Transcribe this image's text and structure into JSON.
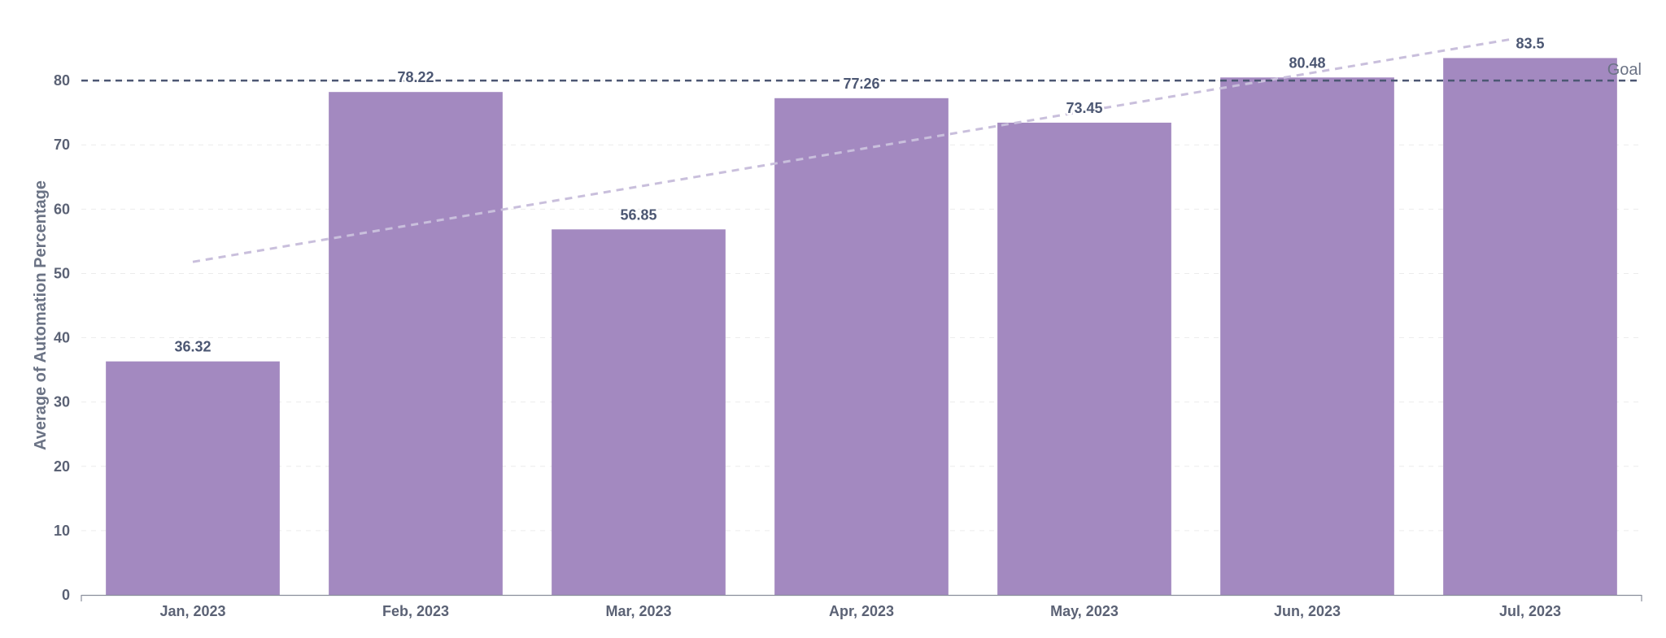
{
  "chart_data": {
    "type": "bar",
    "categories": [
      "Jan, 2023",
      "Feb, 2023",
      "Mar, 2023",
      "Apr, 2023",
      "May, 2023",
      "Jun, 2023",
      "Jul, 2023"
    ],
    "values": [
      36.32,
      78.22,
      56.85,
      77.26,
      73.45,
      80.48,
      83.5
    ],
    "value_labels": [
      "36.32",
      "78.22",
      "56.85",
      "77.26",
      "73.45",
      "80.48",
      "83.5"
    ],
    "ylabel": "Average of Automation Percentage",
    "xlabel": "",
    "ylim": [
      0,
      90
    ],
    "yticks": [
      0,
      10,
      20,
      30,
      40,
      50,
      60,
      70,
      80
    ],
    "ytick_labels": [
      "0",
      "10",
      "20",
      "30",
      "40",
      "50",
      "60",
      "70",
      "80"
    ],
    "goal": {
      "value": 80,
      "label": "Goal",
      "color": "#4c5773"
    },
    "trendline": {
      "start": 51.8,
      "end": 86.5,
      "color": "#c9bfdc"
    },
    "bar_color": "#a389c0",
    "grid": true
  }
}
